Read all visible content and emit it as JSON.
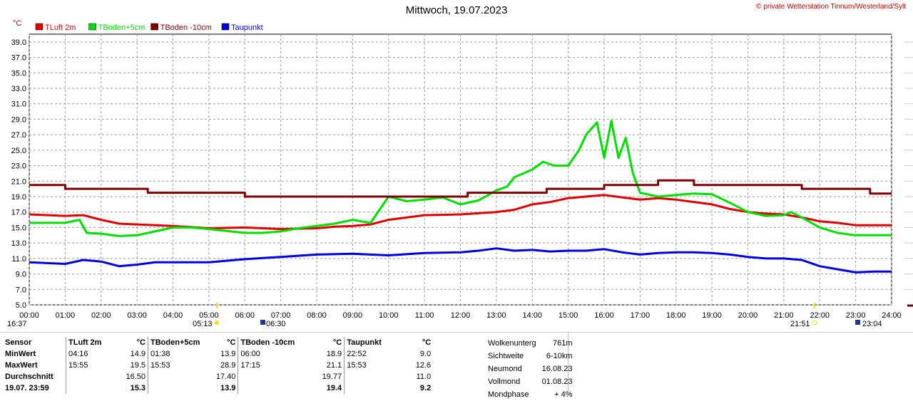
{
  "title": "Mittwoch, 19.07.2023",
  "copyright": "© private Wetterstation Tinnum/Westerland/Sylt",
  "unit": "°C",
  "colors": {
    "tluft": "#e00000",
    "tboden5": "#00e000",
    "tboden10": "#800000",
    "taupunkt": "#0000e0"
  },
  "chart_data": {
    "type": "line",
    "ylim": [
      5.0,
      40.0
    ],
    "yticks": [
      "5.0",
      "7.0",
      "9.0",
      "11.0",
      "13.0",
      "15.0",
      "17.0",
      "19.0",
      "21.0",
      "23.0",
      "25.0",
      "27.0",
      "29.0",
      "31.0",
      "33.0",
      "35.0",
      "37.0",
      "39.0"
    ],
    "xlim": [
      0,
      24
    ],
    "xticks": [
      "00:00",
      "01:00",
      "02:00",
      "03:00",
      "04:00",
      "05:00",
      "06:00",
      "07:00",
      "08:00",
      "09:00",
      "10:00",
      "11:00",
      "12:00",
      "13:00",
      "14:00",
      "15:00",
      "16:00",
      "17:00",
      "18:00",
      "19:00",
      "20:00",
      "21:00",
      "22:00",
      "23:00",
      "24:00"
    ],
    "grid": true,
    "legend": "top-left",
    "series": [
      {
        "name": "TLuft 2m",
        "key": "tluft",
        "x": [
          0,
          1,
          1.5,
          2,
          2.5,
          3,
          4,
          5,
          6,
          7,
          8,
          8.5,
          9,
          9.5,
          10,
          11,
          12,
          13,
          13.5,
          14,
          14.5,
          15,
          15.5,
          16,
          16.5,
          17,
          17.5,
          18,
          18.5,
          19,
          19.5,
          20,
          20.5,
          21,
          21.5,
          22,
          22.5,
          23,
          24
        ],
        "y": [
          16.7,
          16.5,
          16.6,
          16.0,
          15.5,
          15.4,
          15.2,
          14.9,
          15.0,
          14.8,
          14.9,
          15.1,
          15.2,
          15.4,
          16.0,
          16.6,
          16.7,
          17.0,
          17.3,
          18.0,
          18.3,
          18.8,
          19.0,
          19.2,
          18.9,
          18.6,
          18.8,
          18.6,
          18.3,
          18.0,
          17.4,
          17.0,
          16.8,
          16.7,
          16.3,
          15.8,
          15.6,
          15.3,
          15.3
        ]
      },
      {
        "name": "TBoden+5cm",
        "key": "tboden5",
        "x": [
          0,
          1,
          1.4,
          1.6,
          2,
          2.5,
          3,
          3.5,
          4,
          4.5,
          5,
          6,
          6.5,
          7,
          7.5,
          8,
          8.5,
          9,
          9.5,
          10,
          10.5,
          11,
          11.5,
          12,
          12.5,
          13,
          13.3,
          13.5,
          14,
          14.3,
          14.6,
          15,
          15.3,
          15.5,
          15.8,
          16,
          16.2,
          16.4,
          16.6,
          16.8,
          17,
          17.5,
          18,
          18.5,
          19,
          19.5,
          20,
          20.5,
          21,
          21.2,
          21.5,
          22,
          22.5,
          23,
          23.5,
          24
        ],
        "y": [
          15.6,
          15.6,
          16.0,
          14.3,
          14.2,
          13.9,
          14.0,
          14.5,
          15.0,
          15.0,
          14.8,
          14.3,
          14.3,
          14.5,
          14.9,
          15.2,
          15.5,
          16.0,
          15.6,
          19.0,
          18.4,
          18.6,
          18.9,
          18.0,
          18.5,
          19.8,
          20.3,
          21.5,
          22.5,
          23.5,
          23.0,
          23.0,
          25.0,
          27.0,
          28.6,
          24.0,
          28.8,
          24.0,
          26.6,
          22.0,
          19.5,
          19.0,
          19.2,
          19.4,
          19.3,
          18.2,
          17.0,
          16.5,
          16.6,
          17.0,
          16.3,
          15.0,
          14.3,
          14.0,
          14.0,
          14.0
        ]
      },
      {
        "name": "TBoden -10cm",
        "key": "tboden10",
        "x": [
          0,
          1,
          2,
          3,
          3.3,
          4,
          5,
          6,
          7,
          8,
          9,
          10,
          11,
          12,
          12.2,
          13,
          14,
          14.4,
          15,
          16,
          16.3,
          17,
          17.5,
          18,
          18.5,
          19,
          20,
          21,
          21.5,
          22,
          23,
          23.4,
          24
        ],
        "y": [
          20.5,
          20.0,
          20.0,
          20.0,
          19.5,
          19.5,
          19.5,
          19.0,
          19.0,
          19.0,
          19.0,
          19.0,
          19.0,
          19.0,
          19.5,
          19.5,
          19.5,
          20.0,
          20.0,
          20.5,
          20.5,
          20.5,
          21.1,
          21.1,
          20.5,
          20.5,
          20.5,
          20.5,
          20.0,
          20.0,
          20.0,
          19.4,
          19.4
        ]
      },
      {
        "name": "Taupunkt",
        "key": "taupunkt",
        "x": [
          0,
          1,
          1.5,
          2,
          2.5,
          3,
          3.5,
          4,
          5,
          6,
          7,
          8,
          9,
          10,
          11,
          12,
          12.5,
          13,
          13.5,
          14,
          14.5,
          15,
          15.5,
          16,
          16.5,
          17,
          17.5,
          18,
          18.5,
          19,
          19.5,
          20,
          20.5,
          21,
          21.5,
          22,
          22.5,
          23,
          23.5,
          24
        ],
        "y": [
          10.5,
          10.3,
          10.8,
          10.6,
          10.0,
          10.2,
          10.5,
          10.5,
          10.5,
          10.9,
          11.2,
          11.5,
          11.6,
          11.4,
          11.7,
          11.8,
          12.0,
          12.3,
          12.0,
          12.1,
          11.9,
          12.0,
          12.0,
          12.2,
          11.8,
          11.5,
          11.7,
          11.8,
          11.8,
          11.7,
          11.5,
          11.2,
          11.0,
          11.0,
          10.8,
          10.0,
          9.6,
          9.2,
          9.3,
          9.3
        ]
      }
    ]
  },
  "astro": {
    "sunrise": "05:13",
    "moonrise": "06:30",
    "sunset": "21:51",
    "moonset": "23:04",
    "last_time": "16:37"
  },
  "stats": {
    "header": [
      "Sensor",
      "TLuft 2m",
      "°C",
      "TBoden+5cm",
      "°C",
      "TBoden -10cm",
      "°C",
      "Taupunkt",
      "°C"
    ],
    "rows": [
      [
        "MinWert",
        "04:16",
        "14.9",
        "01:38",
        "13.9",
        "06:00",
        "18.9",
        "22:52",
        "9.0"
      ],
      [
        "MaxWert",
        "15:55",
        "19.5",
        "15:53",
        "28.9",
        "17:15",
        "21.1",
        "15:53",
        "12.6"
      ],
      [
        "Durchschnitt",
        "",
        "16.50",
        "",
        "17.40",
        "",
        "19.77",
        "",
        "11.0"
      ],
      [
        "19.07. 23:59",
        "",
        "15.3",
        "",
        "13.9",
        "",
        "19.4",
        "",
        "9.2"
      ]
    ]
  },
  "info": [
    [
      "Wolkenunterg",
      "761m"
    ],
    [
      "Sichtweite",
      "6-10km"
    ],
    [
      "Neumond",
      "16.08.23"
    ],
    [
      "Vollmond",
      "01.08.23"
    ],
    [
      "Mondphase",
      "+ 4%"
    ]
  ]
}
